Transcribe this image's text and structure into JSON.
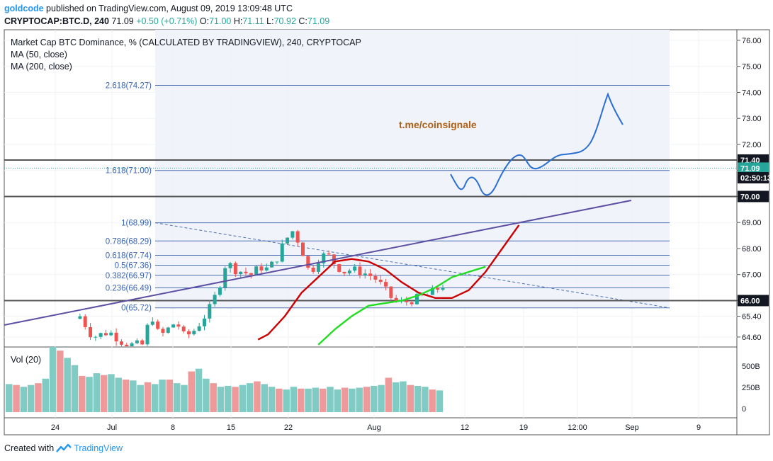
{
  "header": {
    "user": "goldcode",
    "published": "published on TradingView.com, August 09, 2019 13:09:48 UTC",
    "symbol": "CRYPTOCAP:BTC.D, 240",
    "last": "71.09",
    "change": "+0.50 (+0.71%)",
    "o_label": "O:",
    "o_value": "71.00",
    "h_label": "H:",
    "h_value": "71.11",
    "l_label": "L:",
    "l_value": "70.92",
    "c_label": "C:",
    "c_value": "71.09"
  },
  "legend": {
    "title": "Market Cap BTC Dominance, % (CALCULATED BY TRADINGVIEW), 240, CRYPTOCAP",
    "ma50": "MA (50, close)",
    "ma200": "MA (200, close)",
    "vol": "Vol (20)"
  },
  "annotation": "t.me/coinsignale",
  "footer": {
    "created_with": "Created with",
    "brand": "TradingView"
  },
  "colors": {
    "up": "#26a69a",
    "down": "#ef5350",
    "ma50": "#cc0000",
    "ma200": "#22dd22",
    "trendline": "#5e4fa2",
    "fib": "#4a6fb5",
    "projection": "#2b6fd4",
    "annotation": "#b06014"
  },
  "chart_data": {
    "type": "candlestick",
    "title": "Market Cap BTC Dominance, % (CALCULATED BY TRADINGVIEW), 240, CRYPTOCAP",
    "ylim": [
      64.2,
      76.6
    ],
    "y_ticks": [
      "76.00",
      "75.00",
      "74.00",
      "73.00",
      "72.00",
      "71.00",
      "70.00",
      "69.00",
      "68.00",
      "67.00",
      "66.00",
      "65.40",
      "64.60"
    ],
    "x_ticks": [
      "24",
      "Jul",
      "8",
      "15",
      "22",
      "Aug",
      "12",
      "19",
      "12:00",
      "Sep",
      "9"
    ],
    "price_labels": [
      {
        "text": "71.40",
        "value": 71.4,
        "style": "dark"
      },
      {
        "text": "71.09",
        "value": 71.09,
        "style": "green"
      },
      {
        "text": "02:50:13",
        "value": 70.72,
        "style": "dark"
      },
      {
        "text": "70.00",
        "value": 70.0,
        "style": "dark"
      },
      {
        "text": "66.00",
        "value": 66.0,
        "style": "dark"
      }
    ],
    "horizontal_levels": [
      71.4,
      70.0,
      66.0
    ],
    "fib_levels": [
      {
        "label": "2.618(74.27)",
        "value": 74.27
      },
      {
        "label": "1.618(71.00)",
        "value": 71.0
      },
      {
        "label": "1(68.99)",
        "value": 68.99
      },
      {
        "label": "0.786(68.29)",
        "value": 68.29
      },
      {
        "label": "0.618(67.74)",
        "value": 67.74
      },
      {
        "label": "0.5(67.36)",
        "value": 67.36
      },
      {
        "label": "0.382(66.97)",
        "value": 66.97
      },
      {
        "label": "0.236(66.49)",
        "value": 66.49
      },
      {
        "label": "0(65.72)",
        "value": 65.72
      }
    ],
    "series": [
      {
        "name": "MA (50, close)",
        "points": [
          [
            -6.6,
            64.5
          ],
          [
            -6,
            64.7
          ],
          [
            -5,
            65.4
          ],
          [
            -4,
            66.3
          ],
          [
            -3,
            66.9
          ],
          [
            -2,
            67.5
          ],
          [
            -1,
            67.6
          ],
          [
            0,
            67.5
          ],
          [
            1,
            67.2
          ],
          [
            2,
            66.7
          ],
          [
            3,
            66.3
          ],
          [
            4,
            66.1
          ],
          [
            5,
            66.1
          ],
          [
            6,
            66.4
          ],
          [
            7,
            67.1
          ],
          [
            8,
            68.0
          ],
          [
            9,
            68.9
          ]
        ]
      },
      {
        "name": "MA (200, close)",
        "points": [
          [
            -3,
            64.3
          ],
          [
            -2,
            64.9
          ],
          [
            -1,
            65.4
          ],
          [
            0,
            65.8
          ],
          [
            1,
            65.9
          ],
          [
            2,
            66.0
          ],
          [
            3,
            66.2
          ],
          [
            4,
            66.5
          ],
          [
            5,
            66.9
          ],
          [
            6,
            67.1
          ],
          [
            7,
            67.3
          ]
        ]
      },
      {
        "name": "Vol (20)",
        "values": [
          310,
          300,
          280,
          300,
          320,
          370,
          720,
          680,
          600,
          520,
          400,
          390,
          430,
          410,
          420,
          380,
          360,
          350,
          300,
          330,
          310,
          360,
          360,
          320,
          300,
          450,
          480,
          370,
          320,
          280,
          290,
          280,
          300,
          320,
          340,
          310,
          280,
          260,
          250,
          280,
          260,
          260,
          270,
          260,
          280,
          250,
          270,
          260,
          270,
          280,
          290,
          300,
          380,
          330,
          340,
          300,
          290,
          280,
          250,
          240
        ]
      }
    ]
  }
}
